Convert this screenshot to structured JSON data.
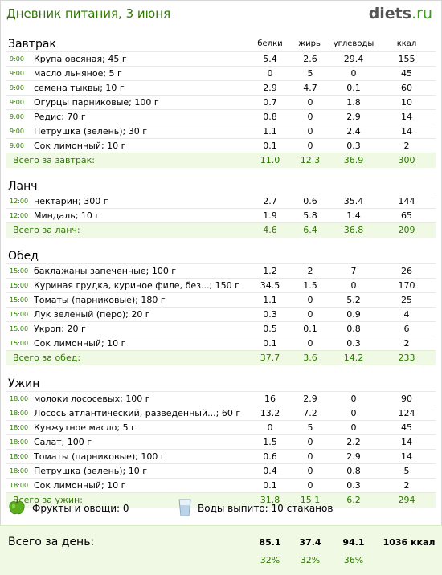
{
  "header": {
    "title": "Дневник питания, 3 июня",
    "logo_main": "diets",
    "logo_tld": ".ru"
  },
  "columns": [
    "белки",
    "жиры",
    "углеводы",
    "ккал"
  ],
  "meals": [
    {
      "name": "Завтрак",
      "show_columns": true,
      "items": [
        {
          "time": "9:00",
          "name": "Крупа овсяная; 45 г",
          "protein": "5.4",
          "fat": "2.6",
          "carbs": "29.4",
          "kcal": "155"
        },
        {
          "time": "9:00",
          "name": "масло льняное; 5 г",
          "protein": "0",
          "fat": "5",
          "carbs": "0",
          "kcal": "45"
        },
        {
          "time": "9:00",
          "name": "семена тыквы; 10 г",
          "protein": "2.9",
          "fat": "4.7",
          "carbs": "0.1",
          "kcal": "60"
        },
        {
          "time": "9:00",
          "name": "Огурцы парниковые; 100 г",
          "protein": "0.7",
          "fat": "0",
          "carbs": "1.8",
          "kcal": "10"
        },
        {
          "time": "9:00",
          "name": "Редис; 70 г",
          "protein": "0.8",
          "fat": "0",
          "carbs": "2.9",
          "kcal": "14"
        },
        {
          "time": "9:00",
          "name": "Петрушка (зелень); 30 г",
          "protein": "1.1",
          "fat": "0",
          "carbs": "2.4",
          "kcal": "14"
        },
        {
          "time": "9:00",
          "name": "Сок лимонный; 10 г",
          "protein": "0.1",
          "fat": "0",
          "carbs": "0.3",
          "kcal": "2"
        }
      ],
      "total": {
        "label": "Всего за завтрак:",
        "protein": "11.0",
        "fat": "12.3",
        "carbs": "36.9",
        "kcal": "300"
      }
    },
    {
      "name": "Ланч",
      "show_columns": false,
      "items": [
        {
          "time": "12:00",
          "name": "нектарин; 300 г",
          "protein": "2.7",
          "fat": "0.6",
          "carbs": "35.4",
          "kcal": "144"
        },
        {
          "time": "12:00",
          "name": "Миндаль; 10 г",
          "protein": "1.9",
          "fat": "5.8",
          "carbs": "1.4",
          "kcal": "65"
        }
      ],
      "total": {
        "label": "Всего за ланч:",
        "protein": "4.6",
        "fat": "6.4",
        "carbs": "36.8",
        "kcal": "209"
      }
    },
    {
      "name": "Обед",
      "show_columns": false,
      "items": [
        {
          "time": "15:00",
          "name": "баклажаны запеченные; 100 г",
          "protein": "1.2",
          "fat": "2",
          "carbs": "7",
          "kcal": "26"
        },
        {
          "time": "15:00",
          "name": "Куриная грудка, куриное филе, без...; 150 г",
          "protein": "34.5",
          "fat": "1.5",
          "carbs": "0",
          "kcal": "170"
        },
        {
          "time": "15:00",
          "name": "Томаты (парниковые); 180 г",
          "protein": "1.1",
          "fat": "0",
          "carbs": "5.2",
          "kcal": "25"
        },
        {
          "time": "15:00",
          "name": "Лук зеленый (перо); 20 г",
          "protein": "0.3",
          "fat": "0",
          "carbs": "0.9",
          "kcal": "4"
        },
        {
          "time": "15:00",
          "name": "Укроп; 20 г",
          "protein": "0.5",
          "fat": "0.1",
          "carbs": "0.8",
          "kcal": "6"
        },
        {
          "time": "15:00",
          "name": "Сок лимонный; 10 г",
          "protein": "0.1",
          "fat": "0",
          "carbs": "0.3",
          "kcal": "2"
        }
      ],
      "total": {
        "label": "Всего за обед:",
        "protein": "37.7",
        "fat": "3.6",
        "carbs": "14.2",
        "kcal": "233"
      }
    },
    {
      "name": "Ужин",
      "show_columns": false,
      "items": [
        {
          "time": "18:00",
          "name": "молоки лососевых; 100 г",
          "protein": "16",
          "fat": "2.9",
          "carbs": "0",
          "kcal": "90"
        },
        {
          "time": "18:00",
          "name": "Лосось атлантический, разведенный...; 60 г",
          "protein": "13.2",
          "fat": "7.2",
          "carbs": "0",
          "kcal": "124"
        },
        {
          "time": "18:00",
          "name": "Кунжутное масло; 5 г",
          "protein": "0",
          "fat": "5",
          "carbs": "0",
          "kcal": "45"
        },
        {
          "time": "18:00",
          "name": "Салат; 100 г",
          "protein": "1.5",
          "fat": "0",
          "carbs": "2.2",
          "kcal": "14"
        },
        {
          "time": "18:00",
          "name": "Томаты (парниковые); 100 г",
          "protein": "0.6",
          "fat": "0",
          "carbs": "2.9",
          "kcal": "14"
        },
        {
          "time": "18:00",
          "name": "Петрушка (зелень); 10 г",
          "protein": "0.4",
          "fat": "0",
          "carbs": "0.8",
          "kcal": "5"
        },
        {
          "time": "18:00",
          "name": "Сок лимонный; 10 г",
          "protein": "0.1",
          "fat": "0",
          "carbs": "0.3",
          "kcal": "2"
        }
      ],
      "total": {
        "label": "Всего за ужин:",
        "protein": "31.8",
        "fat": "15.1",
        "carbs": "6.2",
        "kcal": "294"
      }
    }
  ],
  "extras": {
    "fruits": "Фрукты и овощи: 0",
    "water": "Воды выпито: 10 стаканов"
  },
  "day_total": {
    "label": "Всего за день:",
    "protein": "85.1",
    "fat": "37.4",
    "carbs": "94.1",
    "kcal": "1036 ккал",
    "protein_pct": "32%",
    "fat_pct": "32%",
    "carbs_pct": "36%"
  },
  "colors": {
    "accent": "#2d7a00",
    "total_bg": "#eff9e3",
    "apple": "#5cae1e"
  },
  "icons": {
    "fruit": "green-apple-icon",
    "water": "water-glass-icon"
  }
}
